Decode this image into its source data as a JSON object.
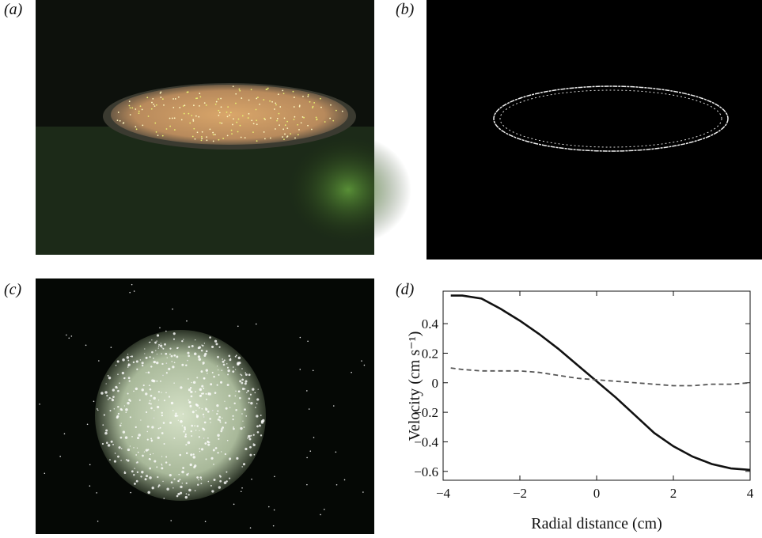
{
  "panels": {
    "a": "(a)",
    "b": "(b)",
    "c": "(c)",
    "d": "(d)"
  },
  "chart_data": {
    "type": "line",
    "xlabel": "Radial distance (cm)",
    "ylabel": "Velocity (cm s⁻¹)",
    "x": [
      -3.8,
      -3.5,
      -3,
      -2.5,
      -2,
      -1.5,
      -1,
      -0.5,
      0,
      0.5,
      1,
      1.5,
      2,
      2.5,
      3,
      3.5,
      4
    ],
    "series": [
      {
        "color": "#111111",
        "dash": false,
        "values": [
          0.59,
          0.59,
          0.57,
          0.5,
          0.42,
          0.33,
          0.23,
          0.12,
          0.01,
          -0.1,
          -0.22,
          -0.34,
          -0.43,
          -0.5,
          -0.55,
          -0.58,
          -0.59
        ]
      },
      {
        "color": "#555555",
        "dash": true,
        "values": [
          0.1,
          0.09,
          0.08,
          0.08,
          0.08,
          0.07,
          0.05,
          0.03,
          0.02,
          0.01,
          0.0,
          -0.01,
          -0.02,
          -0.02,
          -0.01,
          -0.01,
          0.0
        ]
      }
    ],
    "xlim": [
      -4,
      4
    ],
    "ylim": [
      -0.66,
      0.62
    ],
    "xticks": [
      {
        "value": -4,
        "label": "−4"
      },
      {
        "value": -2,
        "label": "−2"
      },
      0,
      2,
      4
    ],
    "yticks": [
      {
        "value": -0.6,
        "label": "−0.6"
      },
      {
        "value": -0.4,
        "label": "−0.4"
      },
      {
        "value": -0.2,
        "label": "−0.2"
      },
      0,
      0.2,
      0.4
    ]
  }
}
